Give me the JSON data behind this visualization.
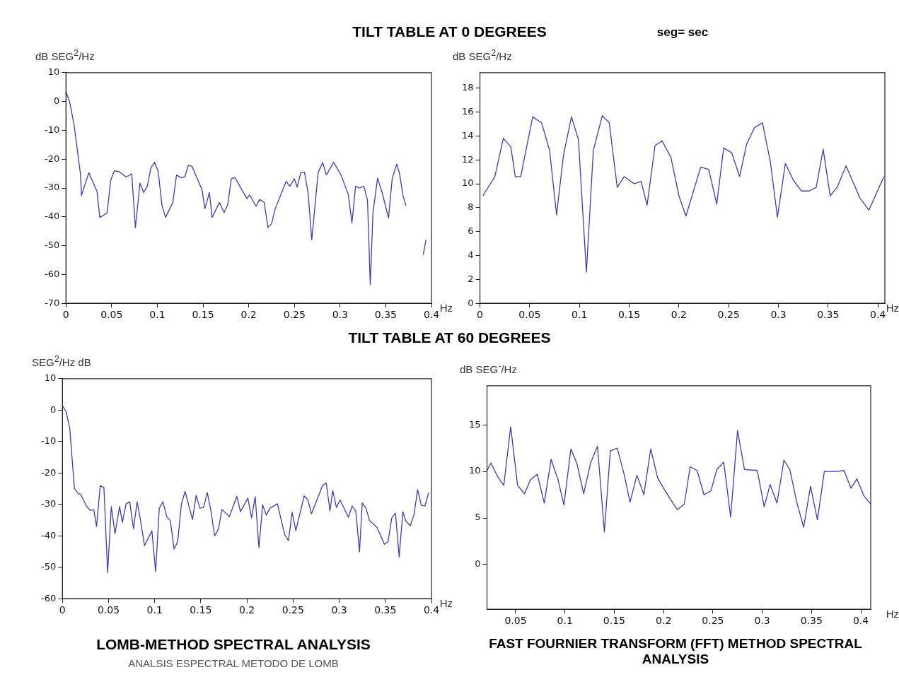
{
  "chart_data": [
    {
      "type": "line",
      "title": "TILT TABLE AT 0 DEGREES",
      "annotations": [
        "seg= sec"
      ],
      "ylabel": "dB SEG$^{2}$/Hz",
      "xlabel": "Hz",
      "color": "#3b3bc0",
      "x": [
        0,
        0.004,
        0.009,
        0.016,
        0.017,
        0.025,
        0.034,
        0.037,
        0.045,
        0.049,
        0.053,
        0.058,
        0.066,
        0.072,
        0.076,
        0.081,
        0.085,
        0.089,
        0.093,
        0.097,
        0.101,
        0.105,
        0.109,
        0.117,
        0.121,
        0.126,
        0.13,
        0.134,
        0.138,
        0.142,
        0.149,
        0.152,
        0.157,
        0.16,
        0.168,
        0.173,
        0.177,
        0.181,
        0.185,
        0.198,
        0.201,
        0.208,
        0.212,
        0.217,
        0.221,
        0.225,
        0.229,
        0.241,
        0.245,
        0.25,
        0.253,
        0.257,
        0.261,
        0.265,
        0.269,
        0.276,
        0.281,
        0.285,
        0.293,
        0.301,
        0.309,
        0.313,
        0.317,
        0.321,
        0.326,
        0.33,
        0.333,
        0.336,
        0.341,
        0.346,
        0.353,
        0.357,
        0.362,
        0.365,
        0.369,
        0.372,
        0.38,
        0.391,
        0.394
      ],
      "values": [
        3.4,
        -0.1,
        -8.3,
        -25.5,
        -32.6,
        -24.7,
        -31.2,
        -40.2,
        -38.7,
        -27.3,
        -24,
        -24.3,
        -26.2,
        -25.1,
        -43.8,
        -28.3,
        -31.6,
        -29.4,
        -23,
        -21.1,
        -24.3,
        -35.9,
        -40.2,
        -35,
        -25.5,
        -26.4,
        -26.2,
        -22.1,
        -22.5,
        -25.5,
        -30.7,
        -37.2,
        -31.6,
        -40.2,
        -35,
        -38.5,
        -35.9,
        -26.8,
        -26.4,
        -33.7,
        -32.4,
        -36.3,
        -34,
        -35,
        -43.7,
        -42.4,
        -37.2,
        -27.7,
        -29.4,
        -26.8,
        -29.7,
        -24.7,
        -24.5,
        -31.6,
        -48,
        -24.7,
        -21.2,
        -25.5,
        -21.1,
        -25.5,
        -32.3,
        -42.1,
        -29.4,
        -30,
        -29.4,
        -34.2,
        -63.5,
        -38.5,
        -26.6,
        -31.6,
        -40.4,
        -26.8,
        -21.7,
        -24.9,
        -32.9,
        -36.1,
        null,
        -53.2,
        -48
      ],
      "xlim": [
        0,
        0.4
      ],
      "xticks": [
        0,
        0.05,
        0.1,
        0.15,
        0.2,
        0.25,
        0.3,
        0.35,
        0.4
      ],
      "ylim": [
        -70,
        10
      ],
      "yticks": [
        -70,
        -60,
        -50,
        -40,
        -30,
        -20,
        -10,
        0,
        10
      ]
    },
    {
      "type": "line",
      "ylabel": "dB SEG$^{2}$/Hz",
      "xlabel": "Hz",
      "color": "#3b3bc0",
      "x": [
        0.003,
        0.015,
        0.0235,
        0.031,
        0.0355,
        0.041,
        0.053,
        0.062,
        0.07,
        0.077,
        0.084,
        0.092,
        0.099,
        0.107,
        0.114,
        0.123,
        0.13,
        0.138,
        0.145,
        0.155,
        0.162,
        0.168,
        0.176,
        0.183,
        0.192,
        0.2,
        0.207,
        0.222,
        0.23,
        0.238,
        0.245,
        0.253,
        0.261,
        0.268,
        0.276,
        0.284,
        0.292,
        0.299,
        0.307,
        0.315,
        0.323,
        0.331,
        0.338,
        0.345,
        0.352,
        0.359,
        0.368,
        0.382,
        0.391,
        0.406
      ],
      "values": [
        9,
        10.6,
        13.8,
        13.1,
        10.6,
        10.6,
        15.6,
        15.1,
        12.8,
        7.4,
        12.4,
        15.6,
        13.7,
        2.6,
        12.8,
        15.7,
        15.1,
        9.7,
        10.6,
        10,
        10.2,
        8.2,
        13.2,
        13.6,
        12.2,
        9,
        7.3,
        11.4,
        11.2,
        8.3,
        13,
        12.6,
        10.6,
        13.3,
        14.7,
        15.1,
        11.8,
        7.2,
        11.7,
        10.3,
        9.4,
        9.4,
        9.7,
        12.9,
        9,
        9.7,
        11.5,
        8.8,
        7.8,
        10.6
      ],
      "xlim": [
        0,
        0.407
      ],
      "xticks": [
        0,
        0.05,
        0.1,
        0.15,
        0.2,
        0.25,
        0.3,
        0.35,
        0.4
      ],
      "ylim": [
        0,
        19.3
      ],
      "yticks": [
        0,
        2,
        4,
        6,
        8,
        10,
        12,
        14,
        16,
        18
      ]
    },
    {
      "type": "line",
      "title": "TILT TABLE AT 60 DEGREES",
      "annotations": [
        "LOMB-METHOD SPECTRAL ANALYSIS",
        "ANALSIS ESPECTRAL METODO DE LOMB"
      ],
      "ylabel": "SEG$^{2}$/Hz dB",
      "xlabel": "Hz",
      "color": "#3b3bc0",
      "x": [
        0,
        0.004,
        0.008,
        0.013,
        0.017,
        0.02,
        0.026,
        0.03,
        0.034,
        0.037,
        0.041,
        0.045,
        0.049,
        0.053,
        0.057,
        0.062,
        0.065,
        0.069,
        0.073,
        0.077,
        0.081,
        0.084,
        0.089,
        0.097,
        0.101,
        0.105,
        0.109,
        0.113,
        0.117,
        0.121,
        0.125,
        0.129,
        0.133,
        0.141,
        0.145,
        0.149,
        0.153,
        0.157,
        0.161,
        0.165,
        0.169,
        0.173,
        0.181,
        0.189,
        0.193,
        0.201,
        0.205,
        0.209,
        0.213,
        0.217,
        0.221,
        0.225,
        0.233,
        0.241,
        0.245,
        0.249,
        0.253,
        0.262,
        0.266,
        0.27,
        0.282,
        0.286,
        0.29,
        0.293,
        0.297,
        0.301,
        0.31,
        0.314,
        0.318,
        0.322,
        0.325,
        0.329,
        0.333,
        0.341,
        0.349,
        0.353,
        0.357,
        0.361,
        0.365,
        0.369,
        0.372,
        0.377,
        0.381,
        0.385,
        0.389,
        0.393,
        0.397
      ],
      "values": [
        1.4,
        -0.5,
        -5.9,
        -24.9,
        -26.5,
        -26.9,
        -30.5,
        -31.9,
        -31.7,
        -37,
        -24,
        -24.7,
        -51.7,
        -30.7,
        -39.3,
        -30.7,
        -35.7,
        -29.8,
        -29.2,
        -37.7,
        -29.2,
        -33.9,
        -43.1,
        -38.4,
        -51.4,
        -31.2,
        -29.2,
        -33.9,
        -35.2,
        -44.2,
        -41.8,
        -29.8,
        -25.9,
        -34.8,
        -27.1,
        -31.2,
        -31,
        -26.2,
        -32.1,
        -40,
        -37.9,
        -31.6,
        -33.9,
        -27.4,
        -32.3,
        -28,
        -34.3,
        -27.5,
        -43.8,
        -30.1,
        -33.4,
        -31.2,
        -29.8,
        -39.7,
        -41.5,
        -32.5,
        -38.4,
        -27.3,
        -28.5,
        -33,
        -24,
        -23.2,
        -32.1,
        -25.6,
        -31,
        -28.6,
        -34.1,
        -30.5,
        -32.1,
        -45.1,
        -29.5,
        -31.2,
        -35.2,
        -37.3,
        -42.7,
        -41.8,
        -34.3,
        -32.8,
        -46.7,
        -32.3,
        -35.2,
        -36.8,
        -33.4,
        -25.3,
        -30.3,
        -30.5,
        -26.2
      ],
      "xlim": [
        0,
        0.4
      ],
      "xticks": [
        0,
        0.05,
        0.1,
        0.15,
        0.2,
        0.25,
        0.3,
        0.35,
        0.4
      ],
      "ylim": [
        -60,
        10
      ],
      "yticks": [
        -60,
        -50,
        -40,
        -30,
        -20,
        -10,
        0,
        10
      ]
    },
    {
      "type": "line",
      "annotations": [
        "FAST FOURNIER TRANSFORM (FFT) METHOD SPECTRAL ANALYSIS"
      ],
      "ylabel": "dB SEG$^{-}$/Hz",
      "xlabel": "Hz",
      "color": "#3b3bc0",
      "x": [
        0.021,
        0.025,
        0.032,
        0.038,
        0.045,
        0.052,
        0.059,
        0.065,
        0.072,
        0.079,
        0.086,
        0.093,
        0.099,
        0.106,
        0.112,
        0.119,
        0.126,
        0.133,
        0.14,
        0.146,
        0.153,
        0.16,
        0.166,
        0.173,
        0.18,
        0.187,
        0.194,
        0.2,
        0.207,
        0.214,
        0.221,
        0.227,
        0.234,
        0.241,
        0.248,
        0.254,
        0.261,
        0.268,
        0.275,
        0.282,
        0.295,
        0.302,
        0.308,
        0.315,
        0.322,
        0.328,
        0.335,
        0.342,
        0.349,
        0.356,
        0.363,
        0.376,
        0.383,
        0.39,
        0.396,
        0.403,
        0.41
      ],
      "values": [
        10.1,
        10.9,
        9.4,
        8.5,
        14.8,
        8.5,
        7.6,
        9.1,
        9.7,
        6.6,
        11.3,
        9.1,
        6.4,
        12.4,
        10.9,
        7.6,
        10.9,
        12.7,
        3.5,
        12.2,
        12.5,
        9.7,
        6.7,
        9.6,
        7.5,
        12.4,
        9.3,
        8.2,
        7,
        5.9,
        6.5,
        10.5,
        10.1,
        7.5,
        7.9,
        10.2,
        11,
        5.1,
        14.4,
        10.2,
        10.1,
        6.2,
        8.6,
        6.6,
        11.2,
        10.2,
        6.7,
        4,
        8.4,
        4.8,
        10,
        10,
        10.1,
        8.2,
        9.2,
        7.4,
        6.5
      ],
      "xlim": [
        0.021,
        0.41
      ],
      "xticks": [
        0.05,
        0.1,
        0.15,
        0.2,
        0.25,
        0.3,
        0.35,
        0.4
      ],
      "ylim": [
        -4.8,
        19.2
      ],
      "yticks": [
        0,
        5,
        10,
        15
      ]
    }
  ]
}
